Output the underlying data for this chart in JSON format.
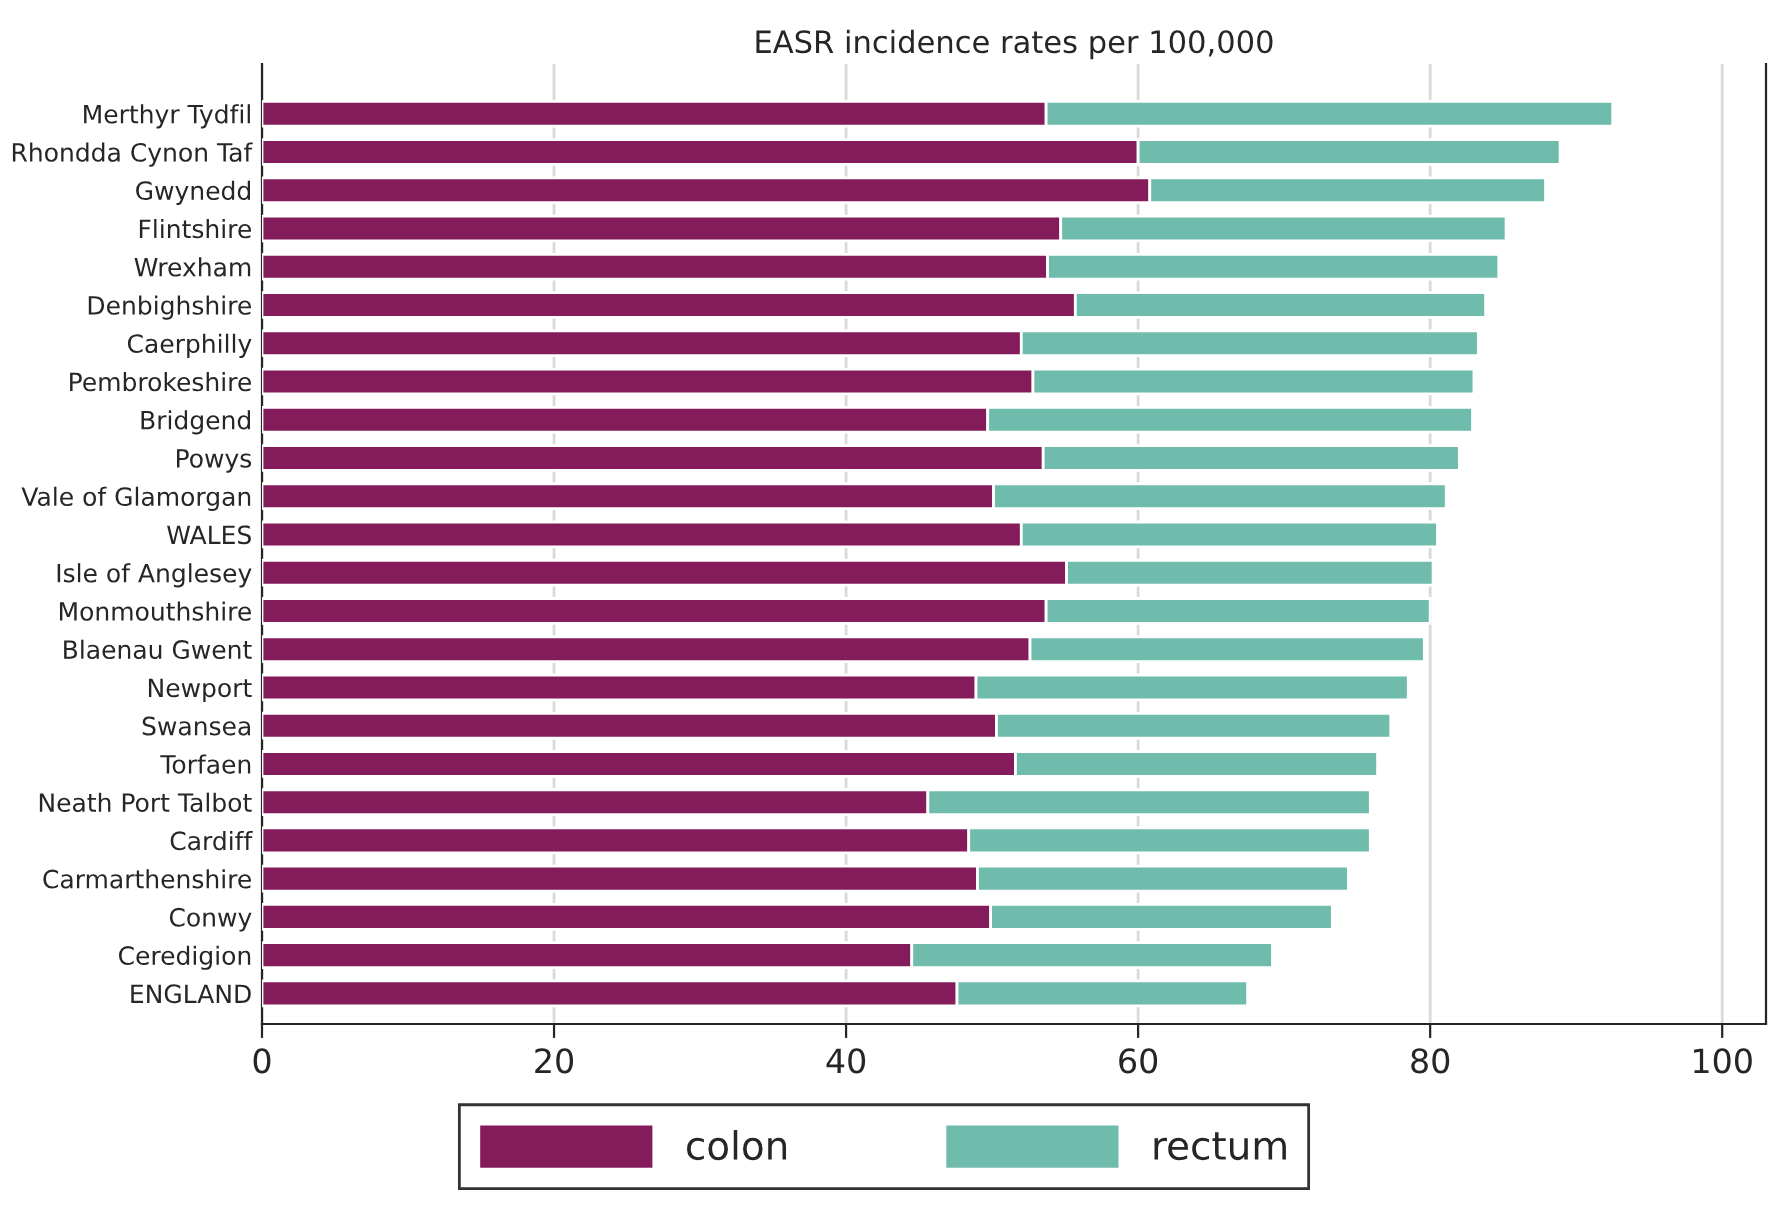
{
  "chart_data": {
    "type": "bar",
    "orientation": "horizontal",
    "stacked": true,
    "title": "EASR incidence rates per 100,000",
    "categories": [
      "Merthyr Tydfil",
      "Rhondda Cynon Taf",
      "Gwynedd",
      "Flintshire",
      "Wrexham",
      "Denbighshire",
      "Caerphilly",
      "Pembrokeshire",
      "Bridgend",
      "Powys",
      "Vale of Glamorgan",
      "WALES",
      "Isle of Anglesey",
      "Monmouthshire",
      "Blaenau Gwent",
      "Newport",
      "Swansea",
      "Torfaen",
      "Neath Port Talbot",
      "Cardiff",
      "Carmarthenshire",
      "Conwy",
      "Ceredigion",
      "ENGLAND"
    ],
    "series": [
      {
        "name": "colon",
        "color": "#841c5c",
        "values": [
          53.7,
          60.0,
          60.8,
          54.7,
          53.8,
          55.7,
          52.0,
          52.8,
          49.7,
          53.5,
          50.1,
          52.0,
          55.1,
          53.7,
          52.6,
          48.9,
          50.3,
          51.6,
          45.6,
          48.4,
          49.0,
          49.9,
          44.5,
          47.6
        ]
      },
      {
        "name": "rectum",
        "color": "#6fbcac",
        "values": [
          38.8,
          28.9,
          27.1,
          30.5,
          30.9,
          28.1,
          31.3,
          30.2,
          33.2,
          28.5,
          31.0,
          28.5,
          25.1,
          26.3,
          27.0,
          29.6,
          27.0,
          24.8,
          30.3,
          27.5,
          25.4,
          23.4,
          24.7,
          19.9
        ]
      }
    ],
    "xlim": [
      0,
      103
    ],
    "xticks": [
      0,
      20,
      40,
      60,
      80,
      100
    ],
    "grid": "x",
    "legend": "bottom"
  }
}
